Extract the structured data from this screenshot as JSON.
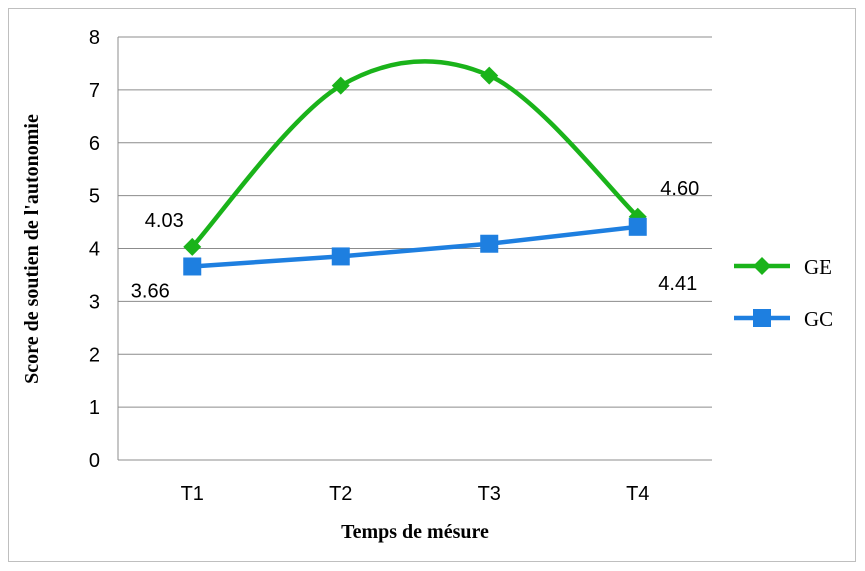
{
  "chart_data": {
    "type": "line",
    "title": "",
    "xlabel": "Temps de mésure",
    "ylabel": "Score de soutien de l'autonomie",
    "categories": [
      "T1",
      "T2",
      "T3",
      "T4"
    ],
    "ylim": [
      0,
      8
    ],
    "yticks": [
      "0",
      "1",
      "2",
      "3",
      "4",
      "5",
      "6",
      "7",
      "8"
    ],
    "grid": true,
    "legend_position": "right",
    "series": [
      {
        "name": "GE",
        "values": [
          4.03,
          7.08,
          7.27,
          4.6
        ],
        "color": "#1ab31a",
        "marker": "diamond",
        "smooth": true,
        "data_labels": [
          "4.03",
          "",
          "",
          "4.60"
        ]
      },
      {
        "name": "GC",
        "values": [
          3.66,
          3.85,
          4.09,
          4.41
        ],
        "color": "#1e7fe0",
        "marker": "square",
        "smooth": false,
        "data_labels": [
          "3.66",
          "",
          "",
          "4.41"
        ]
      }
    ]
  }
}
